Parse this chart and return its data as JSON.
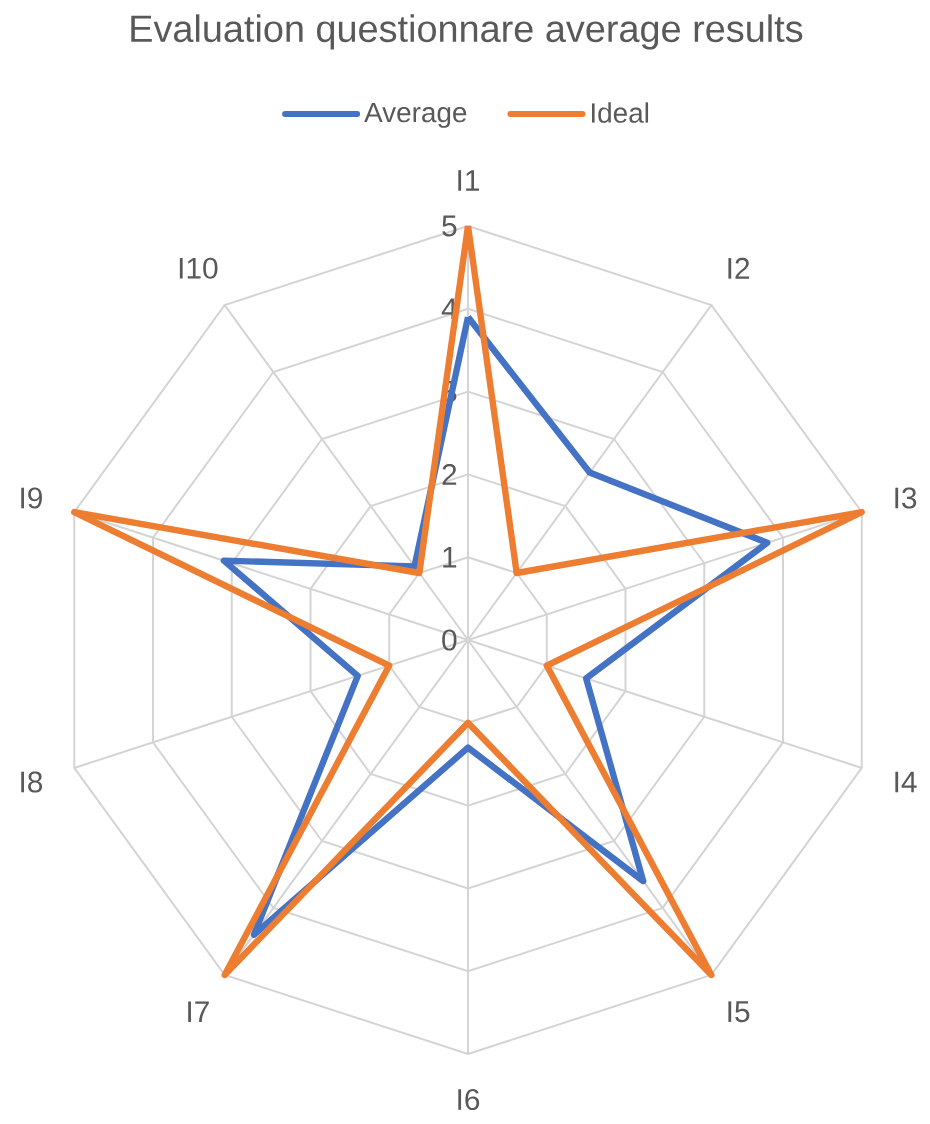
{
  "chart_data": {
    "type": "radar",
    "title": "Evaluation questionnare average results",
    "categories": [
      "I1",
      "I2",
      "I3",
      "I4",
      "I5",
      "I6",
      "I7",
      "I8",
      "I9",
      "I10"
    ],
    "series": [
      {
        "name": "Average",
        "color": "#4472c4",
        "values": [
          3.9,
          2.5,
          3.8,
          1.5,
          3.6,
          1.3,
          4.4,
          1.4,
          3.1,
          1.1
        ]
      },
      {
        "name": "Ideal",
        "color": "#ed7d31",
        "values": [
          5,
          1,
          5,
          1,
          5,
          1,
          5,
          1,
          5,
          1
        ]
      }
    ],
    "ylim": [
      0,
      5
    ],
    "yticks": [
      0,
      1,
      2,
      3,
      4,
      5
    ],
    "grid": true,
    "legend": "top"
  }
}
